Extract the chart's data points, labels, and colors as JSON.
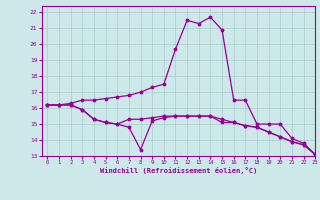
{
  "xlabel": "Windchill (Refroidissement éolien,°C)",
  "bg_color": "#cce8e8",
  "grid_color": "#aacccc",
  "line_color": "#990099",
  "xlim": [
    -0.5,
    23
  ],
  "ylim": [
    13,
    22.4
  ],
  "xticks": [
    0,
    1,
    2,
    3,
    4,
    5,
    6,
    7,
    8,
    9,
    10,
    11,
    12,
    13,
    14,
    15,
    16,
    17,
    18,
    19,
    20,
    21,
    22,
    23
  ],
  "yticks": [
    13,
    14,
    15,
    16,
    17,
    18,
    19,
    20,
    21,
    22
  ],
  "line1_x": [
    0,
    1,
    2,
    3,
    4,
    5,
    6,
    7,
    8,
    9,
    10,
    11,
    12,
    13,
    14,
    15,
    16,
    17,
    18,
    19,
    20,
    21,
    22,
    23
  ],
  "line1_y": [
    16.2,
    16.2,
    16.2,
    15.9,
    15.3,
    15.1,
    15.0,
    15.3,
    15.3,
    15.4,
    15.5,
    15.5,
    15.5,
    15.5,
    15.5,
    15.1,
    15.1,
    14.9,
    14.8,
    14.5,
    14.2,
    13.9,
    13.7,
    13.1
  ],
  "line2_x": [
    0,
    1,
    2,
    3,
    4,
    5,
    6,
    7,
    8,
    9,
    10,
    11,
    12,
    13,
    14,
    15,
    16,
    17,
    18,
    19,
    20,
    21,
    22,
    23
  ],
  "line2_y": [
    16.2,
    16.2,
    16.2,
    15.9,
    15.3,
    15.1,
    15.0,
    14.8,
    13.4,
    15.2,
    15.4,
    15.5,
    15.5,
    15.5,
    15.5,
    15.3,
    15.1,
    14.9,
    14.8,
    14.5,
    14.2,
    13.9,
    13.7,
    13.1
  ],
  "line3_x": [
    0,
    1,
    2,
    3,
    4,
    5,
    6,
    7,
    8,
    9,
    10,
    11,
    12,
    13,
    14,
    15,
    16,
    17,
    18,
    19,
    20,
    21,
    22,
    23
  ],
  "line3_y": [
    16.2,
    16.2,
    16.3,
    16.5,
    16.5,
    16.6,
    16.7,
    16.8,
    17.0,
    17.3,
    17.5,
    19.7,
    21.5,
    21.3,
    21.7,
    20.9,
    16.5,
    16.5,
    15.0,
    15.0,
    15.0,
    14.1,
    13.8,
    13.1
  ]
}
